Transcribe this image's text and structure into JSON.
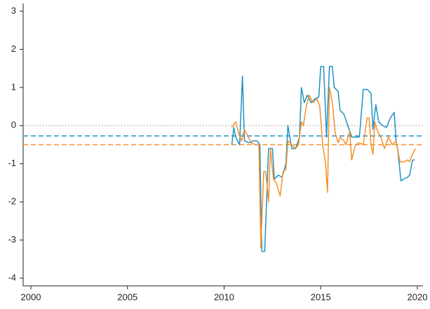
{
  "chart_data": {
    "type": "line",
    "xlim": [
      2000,
      2020
    ],
    "xticks": [
      2000,
      2005,
      2010,
      2015,
      2020
    ],
    "ylim": [
      -4,
      3
    ],
    "yticks": [
      -4,
      -3,
      -2,
      -1,
      0,
      1,
      2,
      3
    ],
    "reference_lines": [
      {
        "value": 0,
        "color": "#8c8c8c",
        "style": "dotted"
      },
      {
        "value": -0.27,
        "color": "#2191c3",
        "style": "dashed"
      },
      {
        "value": -0.5,
        "color": "#f5902a",
        "style": "dashed"
      }
    ],
    "series": [
      {
        "color": "#2191c3",
        "x": [
          2010.4,
          2010.5,
          2010.6,
          2010.8,
          2010.95,
          2011.05,
          2011.3,
          2011.5,
          2011.7,
          2011.85,
          2011.95,
          2012.1,
          2012.3,
          2012.5,
          2012.6,
          2012.8,
          2013.0,
          2013.2,
          2013.3,
          2013.5,
          2013.7,
          2013.9,
          2014.0,
          2014.15,
          2014.3,
          2014.5,
          2014.7,
          2014.9,
          2015.0,
          2015.15,
          2015.3,
          2015.45,
          2015.6,
          2015.7,
          2015.9,
          2016.0,
          2016.2,
          2016.4,
          2016.6,
          2016.8,
          2017.0,
          2017.2,
          2017.4,
          2017.6,
          2017.7,
          2017.85,
          2018.0,
          2018.2,
          2018.4,
          2018.6,
          2018.8,
          2018.9,
          2019.0,
          2019.15,
          2019.3,
          2019.5,
          2019.6,
          2019.75,
          2019.85
        ],
        "values": [
          -0.5,
          -0.05,
          -0.3,
          -0.5,
          1.3,
          -0.4,
          -0.45,
          -0.4,
          -0.4,
          -0.5,
          -3.3,
          -3.3,
          -0.6,
          -0.6,
          -1.4,
          -1.3,
          -1.35,
          -1.0,
          0.0,
          -0.6,
          -0.6,
          -0.3,
          1.0,
          0.6,
          0.8,
          0.6,
          0.7,
          0.75,
          1.55,
          1.55,
          -0.3,
          1.55,
          1.55,
          1.0,
          0.9,
          0.4,
          0.3,
          0.0,
          -0.3,
          -0.3,
          -0.3,
          0.95,
          0.95,
          0.85,
          -0.1,
          0.55,
          0.1,
          0.0,
          -0.05,
          0.2,
          0.35,
          -0.4,
          -0.7,
          -1.45,
          -1.4,
          -1.35,
          -1.3,
          -0.9,
          -0.9
        ]
      },
      {
        "color": "#f5902a",
        "x": [
          2010.4,
          2010.6,
          2010.75,
          2010.9,
          2011.05,
          2011.2,
          2011.4,
          2011.6,
          2011.8,
          2011.9,
          2012.05,
          2012.15,
          2012.3,
          2012.4,
          2012.55,
          2012.7,
          2012.9,
          2013.05,
          2013.2,
          2013.3,
          2013.5,
          2013.7,
          2013.85,
          2014.0,
          2014.1,
          2014.25,
          2014.4,
          2014.6,
          2014.8,
          2014.95,
          2015.1,
          2015.25,
          2015.35,
          2015.45,
          2015.6,
          2015.75,
          2015.9,
          2016.0,
          2016.2,
          2016.3,
          2016.5,
          2016.6,
          2016.8,
          2017.0,
          2017.2,
          2017.4,
          2017.5,
          2017.6,
          2017.7,
          2017.8,
          2017.9,
          2018.1,
          2018.3,
          2018.5,
          2018.7,
          2018.9,
          2019.1,
          2019.3,
          2019.5,
          2019.6,
          2019.7,
          2019.9
        ],
        "values": [
          -0.05,
          0.1,
          -0.2,
          -0.4,
          -0.1,
          -0.25,
          -0.45,
          -0.5,
          -0.5,
          -3.2,
          -1.2,
          -1.2,
          -2.0,
          -0.6,
          -1.4,
          -1.5,
          -1.85,
          -1.2,
          -1.15,
          -0.4,
          -0.5,
          -0.6,
          -0.5,
          0.1,
          0.0,
          0.5,
          0.8,
          0.6,
          0.7,
          0.5,
          -0.5,
          -1.0,
          -1.75,
          1.0,
          0.6,
          -0.2,
          -0.45,
          -0.3,
          -0.4,
          -0.5,
          -0.15,
          -0.9,
          -0.5,
          -0.45,
          -0.5,
          0.2,
          0.2,
          -0.5,
          -0.75,
          0.1,
          -0.1,
          -0.3,
          -0.6,
          -0.3,
          -0.5,
          -0.4,
          -0.95,
          -0.95,
          -0.9,
          -0.95,
          -0.8,
          -0.6
        ]
      }
    ]
  }
}
